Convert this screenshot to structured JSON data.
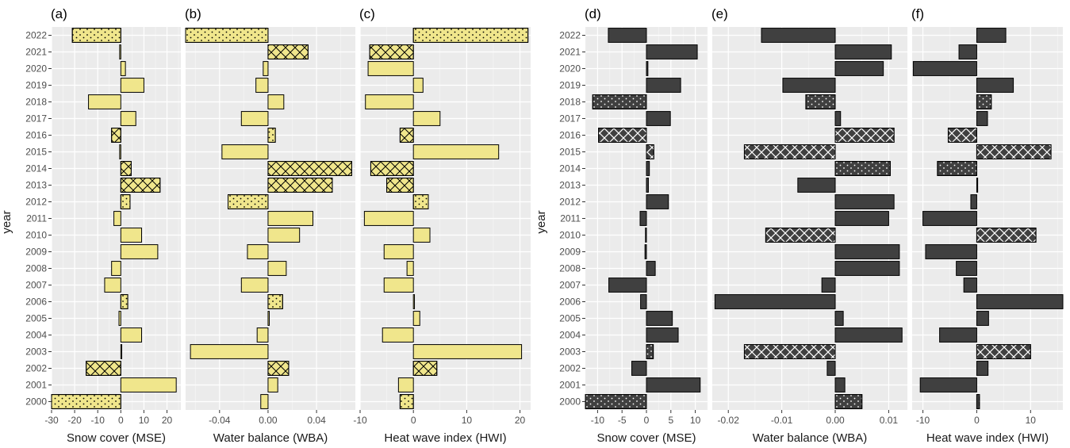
{
  "chart_data": {
    "type": "bar",
    "orientation": "horizontal",
    "grid": true,
    "colors": {
      "group_left": "#f0e68c",
      "group_right": "#404040",
      "panel_background": "#ebebeb",
      "gridline": "#ffffff"
    },
    "years": [
      "2000",
      "2001",
      "2002",
      "2003",
      "2004",
      "2005",
      "2006",
      "2007",
      "2008",
      "2009",
      "2010",
      "2011",
      "2012",
      "2013",
      "2014",
      "2015",
      "2016",
      "2017",
      "2018",
      "2019",
      "2020",
      "2021",
      "2022"
    ],
    "ylabel": "year",
    "panels": [
      {
        "label": "(a)",
        "xlabel": "Snow cover (MSE)",
        "color": "#f0e68c",
        "xlim": [
          -30,
          26
        ],
        "xticks": [
          -30,
          -20,
          -10,
          0,
          10,
          20
        ],
        "xtick_labels": [
          "-30",
          "-20",
          "-10",
          "0",
          "10",
          "20"
        ],
        "values": [
          -30,
          24,
          -15,
          0.4,
          9,
          -0.8,
          3,
          -7,
          -4,
          16,
          9,
          -3,
          4,
          17,
          4.5,
          -0.5,
          -4,
          6.5,
          -14,
          10,
          2,
          -0.5,
          -21
        ],
        "patterns": [
          "dots",
          "none",
          "cross",
          "none",
          "none",
          "none",
          "dots",
          "none",
          "none",
          "none",
          "none",
          "none",
          "dots",
          "cross",
          "cross",
          "none",
          "cross",
          "none",
          "none",
          "none",
          "none",
          "none",
          "dots"
        ]
      },
      {
        "label": "(b)",
        "xlabel": "Water balance (WBA)",
        "color": "#f0e68c",
        "xlim": [
          -0.068,
          0.072
        ],
        "xticks": [
          -0.04,
          0,
          0.04
        ],
        "xtick_labels": [
          "-0.04",
          "0.00",
          "0.04"
        ],
        "values": [
          -0.006,
          0.008,
          0.017,
          -0.064,
          -0.009,
          0.001,
          0.012,
          -0.022,
          0.015,
          -0.017,
          0.026,
          0.037,
          -0.033,
          0.053,
          0.069,
          -0.038,
          0.006,
          -0.022,
          0.013,
          -0.01,
          -0.004,
          0.033,
          -0.068
        ],
        "patterns": [
          "none",
          "none",
          "cross",
          "none",
          "none",
          "none",
          "dots",
          "none",
          "none",
          "none",
          "none",
          "none",
          "dots",
          "cross",
          "cross",
          "none",
          "dots",
          "none",
          "none",
          "none",
          "none",
          "cross",
          "dots"
        ]
      },
      {
        "label": "(c)",
        "xlabel": "Heat wave index (HWI)",
        "color": "#f0e68c",
        "xlim": [
          -10,
          22
        ],
        "xticks": [
          -10,
          0,
          10,
          20
        ],
        "xtick_labels": [
          "-10",
          "0",
          "10",
          "20"
        ],
        "values": [
          -2.5,
          -2.8,
          4.4,
          20.3,
          -5.8,
          1.2,
          0.2,
          -5.5,
          -1.2,
          -5.5,
          3.1,
          -9.2,
          2.8,
          -5,
          -8,
          16,
          -2.5,
          5,
          -9,
          1.8,
          -8.5,
          -8.2,
          21.5
        ],
        "patterns": [
          "dots",
          "none",
          "cross",
          "none",
          "none",
          "none",
          "none",
          "none",
          "none",
          "none",
          "none",
          "none",
          "dots",
          "cross",
          "cross",
          "none",
          "cross",
          "none",
          "none",
          "none",
          "none",
          "cross",
          "dots"
        ]
      },
      {
        "label": "(d)",
        "xlabel": "Snow cover (MSE)",
        "color": "#404040",
        "xlim": [
          -12.5,
          12.5
        ],
        "xticks": [
          -10,
          -5,
          0,
          5,
          10
        ],
        "xtick_labels": [
          "-10",
          "-5",
          "0",
          "5",
          "10"
        ],
        "values": [
          -12.5,
          11,
          -3,
          1.4,
          6.5,
          5.3,
          -1.2,
          -7.7,
          1.8,
          -0.3,
          -0.2,
          -1.3,
          4.5,
          0.4,
          0.6,
          1.5,
          -9.8,
          4.9,
          -11,
          7,
          0.3,
          10.4,
          -7.8
        ],
        "patterns": [
          "dots",
          "none",
          "none",
          "dots",
          "none",
          "none",
          "none",
          "none",
          "none",
          "none",
          "none",
          "none",
          "none",
          "none",
          "none",
          "cross",
          "cross",
          "none",
          "dots",
          "none",
          "none",
          "none",
          "none"
        ]
      },
      {
        "label": "(e)",
        "xlabel": "Water balance (WBA)",
        "color": "#404040",
        "xlim": [
          -0.023,
          0.0135
        ],
        "xticks": [
          -0.02,
          -0.01,
          0,
          0.01
        ],
        "xtick_labels": [
          "-0.02",
          "-0.01",
          "0.00",
          "0.01"
        ],
        "values": [
          0.005,
          0.0018,
          -0.0015,
          -0.017,
          0.0125,
          0.0015,
          -0.0225,
          -0.0025,
          0.012,
          0.012,
          -0.013,
          0.01,
          0.011,
          -0.007,
          0.0103,
          -0.017,
          0.011,
          0.001,
          -0.0055,
          -0.0098,
          0.009,
          0.0105,
          -0.0138
        ],
        "patterns": [
          "dots",
          "none",
          "none",
          "cross",
          "none",
          "none",
          "none",
          "none",
          "none",
          "none",
          "cross",
          "none",
          "none",
          "none",
          "dots",
          "cross",
          "cross",
          "none",
          "dots",
          "none",
          "none",
          "none",
          "none"
        ]
      },
      {
        "label": "(f)",
        "xlabel": "Heat wave index (HWI)",
        "color": "#404040",
        "xlim": [
          -12,
          16
        ],
        "xticks": [
          -10,
          0,
          10
        ],
        "xtick_labels": [
          "-10",
          "0",
          "10"
        ],
        "values": [
          0.5,
          -10.5,
          2.1,
          10,
          -6.9,
          2.2,
          16,
          -2.4,
          -3.8,
          -9.5,
          11,
          -10,
          -1.1,
          0.1,
          -7.3,
          13.8,
          -5.3,
          2,
          2.7,
          6.8,
          -11.8,
          -3.3,
          5.4
        ],
        "patterns": [
          "dots",
          "none",
          "none",
          "cross",
          "none",
          "none",
          "none",
          "none",
          "none",
          "none",
          "cross",
          "none",
          "none",
          "none",
          "dots",
          "cross",
          "cross",
          "none",
          "dots",
          "none",
          "none",
          "none",
          "none"
        ]
      }
    ]
  }
}
